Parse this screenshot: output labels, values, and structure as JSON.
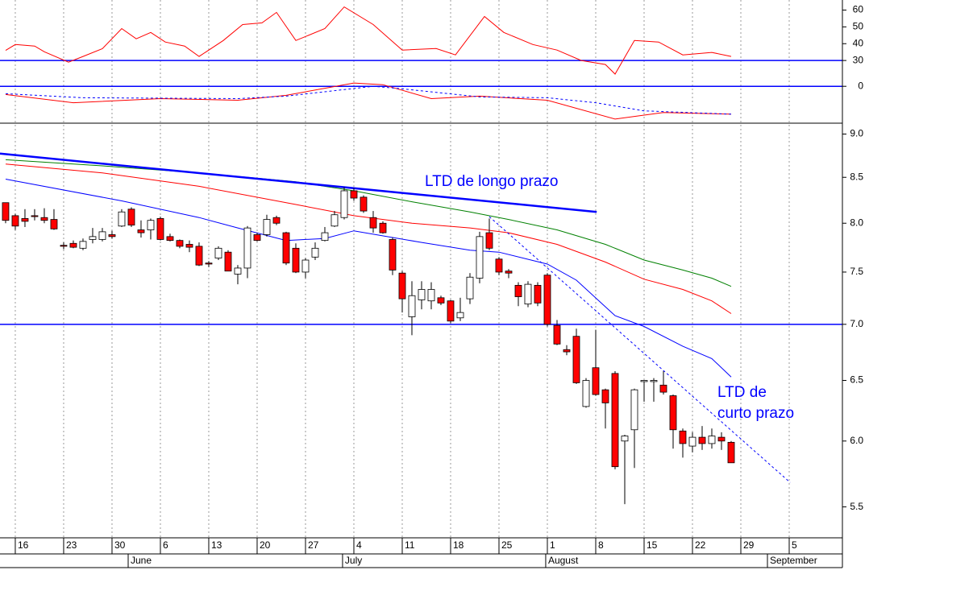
{
  "chart_data": [
    {
      "type": "line",
      "x": [
        0,
        1,
        3,
        4,
        6.5,
        8,
        10,
        12,
        13.5,
        15,
        16.5,
        18.5,
        20,
        22.5,
        24.5,
        26.5,
        28,
        30,
        33,
        35,
        38,
        41,
        44.5,
        46.5,
        49.5,
        51.5,
        54.5,
        57,
        59.5,
        62,
        63,
        65,
        67.5,
        70,
        73,
        75
      ],
      "series": [
        {
          "color": "#ff0000",
          "values": [
            36,
            39.5,
            38.6,
            35.2,
            29,
            32.4,
            37,
            49,
            42.9,
            46.7,
            41,
            38.6,
            32.4,
            41.9,
            51.4,
            52.4,
            58.6,
            41.9,
            49,
            61.9,
            51.4,
            36.2,
            37.1,
            33.3,
            56.2,
            46.7,
            39.5,
            36.2,
            30,
            27.6,
            21.9,
            41.9,
            41,
            33.3,
            34.8,
            32.4
          ]
        }
      ],
      "ylim": [
        20,
        66
      ],
      "yticks": [
        30,
        40,
        50,
        60
      ],
      "hlines": [
        30
      ],
      "hline_color": "#0000ff"
    },
    {
      "type": "line",
      "series": [
        {
          "color": "#ff0000",
          "x": [
            0,
            7,
            16,
            24,
            29,
            36,
            39,
            44,
            49,
            56,
            63,
            68,
            75
          ],
          "values": [
            -0.1,
            -0.2,
            -0.15,
            -0.17,
            -0.11,
            0.04,
            0.02,
            -0.15,
            -0.12,
            -0.17,
            -0.4,
            -0.32,
            -0.34
          ]
        },
        {
          "color": "#0000ff",
          "dash": true,
          "x": [
            0,
            8,
            24,
            29,
            38,
            41,
            49,
            56,
            61,
            66,
            75
          ],
          "values": [
            -0.09,
            -0.14,
            -0.15,
            -0.12,
            0,
            -0.03,
            -0.13,
            -0.14,
            -0.2,
            -0.3,
            -0.34
          ]
        }
      ],
      "ylim": [
        -0.45,
        0.11
      ],
      "yticks": [
        0
      ],
      "hlines": [
        0
      ],
      "hline_color": "#0000ff"
    },
    {
      "type": "candlestick",
      "x": [
        0,
        1,
        2,
        3,
        4,
        5,
        6,
        7,
        8,
        9,
        10,
        11,
        12,
        13,
        14,
        15,
        16,
        17,
        18,
        19,
        20,
        21,
        22,
        23,
        24,
        25,
        26,
        27,
        28,
        29,
        30,
        31,
        32,
        33,
        34,
        35,
        36,
        37,
        38,
        39,
        40,
        41,
        42,
        43,
        44,
        45,
        46,
        47,
        48,
        49,
        50,
        51,
        52,
        53,
        54,
        55,
        56,
        57,
        58,
        59,
        60,
        61,
        62,
        63,
        64,
        65,
        66,
        67,
        68,
        69,
        70,
        71,
        72,
        73,
        74,
        75
      ],
      "open": [
        8.22,
        8.08,
        8.05,
        8.08,
        8.06,
        8.04,
        7.77,
        7.79,
        7.74,
        7.83,
        7.83,
        7.88,
        7.97,
        8.15,
        7.93,
        7.93,
        8.05,
        7.86,
        7.82,
        7.78,
        7.76,
        7.59,
        7.64,
        7.7,
        7.48,
        7.54,
        7.88,
        7.88,
        8.06,
        7.9,
        7.74,
        7.5,
        7.65,
        7.82,
        7.97,
        8.06,
        8.35,
        8.28,
        8.06,
        8.0,
        7.83,
        7.49,
        7.07,
        7.23,
        7.22,
        7.25,
        7.22,
        7.06,
        7.24,
        7.44,
        7.9,
        7.63,
        7.51,
        7.37,
        7.19,
        7.37,
        7.47,
        6.99,
        6.77,
        6.89,
        6.28,
        6.61,
        6.42,
        6.56,
        6.0,
        6.09,
        6.49,
        6.49,
        6.46,
        6.37,
        6.08,
        5.96,
        6.03,
        5.98,
        6.03,
        5.99
      ],
      "high": [
        8.22,
        8.1,
        8.15,
        8.15,
        8.16,
        8.15,
        7.8,
        7.82,
        7.84,
        7.95,
        7.95,
        7.92,
        8.15,
        8.17,
        8.03,
        8.05,
        8.07,
        7.89,
        7.83,
        7.82,
        7.8,
        7.61,
        7.76,
        7.72,
        7.57,
        7.97,
        7.9,
        8.09,
        8.08,
        7.91,
        7.79,
        7.64,
        7.8,
        7.96,
        8.13,
        8.39,
        8.38,
        8.3,
        8.13,
        8.02,
        7.85,
        7.51,
        7.41,
        7.41,
        7.4,
        7.27,
        7.23,
        7.25,
        7.49,
        7.91,
        8.05,
        7.65,
        7.53,
        7.4,
        7.41,
        7.4,
        7.49,
        7.04,
        6.81,
        6.96,
        6.52,
        6.95,
        6.43,
        6.58,
        6.05,
        6.43,
        6.5,
        6.52,
        6.58,
        6.38,
        6.1,
        6.07,
        6.12,
        6.1,
        6.07,
        6.0
      ],
      "low": [
        8.0,
        7.93,
        7.96,
        8.03,
        8.0,
        7.93,
        7.73,
        7.74,
        7.72,
        7.79,
        7.81,
        7.84,
        7.96,
        7.96,
        7.85,
        7.83,
        7.82,
        7.81,
        7.74,
        7.7,
        7.56,
        7.55,
        7.62,
        7.51,
        7.38,
        7.44,
        7.81,
        7.86,
        7.98,
        7.57,
        7.49,
        7.44,
        7.62,
        7.81,
        7.96,
        8.04,
        8.24,
        8.11,
        7.9,
        7.89,
        7.47,
        7.11,
        6.9,
        7.14,
        7.14,
        7.18,
        7.01,
        7.03,
        7.19,
        7.39,
        7.72,
        7.47,
        7.44,
        7.17,
        7.16,
        7.17,
        6.98,
        6.81,
        6.72,
        6.47,
        6.27,
        6.37,
        6.1,
        5.78,
        5.52,
        5.79,
        6.32,
        6.32,
        6.38,
        5.94,
        5.87,
        5.91,
        5.93,
        5.94,
        5.93,
        5.83
      ],
      "close": [
        8.03,
        7.97,
        8.02,
        8.07,
        8.03,
        7.94,
        7.76,
        7.75,
        7.81,
        7.86,
        7.91,
        7.86,
        8.12,
        7.98,
        7.9,
        8.03,
        7.83,
        7.82,
        7.76,
        7.75,
        7.57,
        7.58,
        7.74,
        7.51,
        7.54,
        7.95,
        7.82,
        8.04,
        8.0,
        7.59,
        7.5,
        7.62,
        7.74,
        7.9,
        8.09,
        8.35,
        8.27,
        8.13,
        7.95,
        7.9,
        7.52,
        7.24,
        7.27,
        7.33,
        7.33,
        7.2,
        7.03,
        7.11,
        7.45,
        7.86,
        7.74,
        7.5,
        7.49,
        7.26,
        7.38,
        7.2,
        7.0,
        6.82,
        6.75,
        6.48,
        6.5,
        6.38,
        6.31,
        5.8,
        6.04,
        6.42,
        6.5,
        6.5,
        6.4,
        6.09,
        5.98,
        6.03,
        5.98,
        6.04,
        6.0,
        5.83
      ],
      "up_color": "#ffffff",
      "down_color": "#ff0000",
      "series": [
        {
          "color": "#0000ff",
          "x": [
            0,
            12,
            20,
            24,
            29,
            33,
            36,
            40,
            43,
            48,
            51,
            56,
            59,
            63,
            66,
            70,
            73,
            75
          ],
          "values": [
            8.48,
            8.24,
            8.06,
            7.95,
            7.82,
            7.84,
            7.92,
            7.85,
            7.8,
            7.72,
            7.7,
            7.58,
            7.42,
            7.08,
            6.98,
            6.8,
            6.69,
            6.53
          ]
        },
        {
          "color": "#ff0000",
          "x": [
            0,
            10,
            20,
            30,
            36,
            42,
            48,
            52,
            57,
            62,
            66,
            70,
            73,
            75
          ],
          "values": [
            8.65,
            8.55,
            8.4,
            8.2,
            8.08,
            8.0,
            7.95,
            7.9,
            7.78,
            7.6,
            7.43,
            7.33,
            7.22,
            7.1
          ]
        },
        {
          "color": "#008000",
          "x": [
            0,
            10,
            20,
            30,
            36,
            42,
            48,
            52,
            57,
            62,
            66,
            70,
            73,
            75
          ],
          "values": [
            8.7,
            8.63,
            8.55,
            8.45,
            8.35,
            8.23,
            8.12,
            8.04,
            7.93,
            7.78,
            7.62,
            7.52,
            7.44,
            7.36
          ]
        }
      ],
      "trendlines": [
        {
          "color": "#0000ff",
          "width": 2.5,
          "x": [
            -0.58,
            61.1
          ],
          "values": [
            8.77,
            8.12
          ]
        },
        {
          "color": "#0000ff",
          "width": 1,
          "dash": true,
          "x": [
            50,
            81.1
          ],
          "values": [
            8.07,
            5.68
          ]
        }
      ],
      "hlines": [
        7
      ],
      "hline_color": "#0000ff",
      "annotations": [
        "LTD de longo prazo",
        "LTD de",
        "curto prazo"
      ],
      "ylog": true,
      "ylim": [
        5.28,
        9.13
      ],
      "yticks": [
        5.5,
        {
          "value": 6,
          "label": "6.0"
        },
        6.5,
        {
          "value": 7,
          "label": "7.0"
        },
        7.5,
        {
          "value": 8,
          "label": "8.0"
        },
        8.5,
        {
          "value": 9,
          "label": "9.0"
        }
      ],
      "xlim": [
        -0.58,
        86.5
      ],
      "xticks": [
        {
          "value": 1,
          "label": "16"
        },
        {
          "value": 6,
          "label": "23"
        },
        {
          "value": 11,
          "label": "30"
        },
        {
          "value": 16,
          "label": "6"
        },
        {
          "value": 21,
          "label": "13"
        },
        {
          "value": 26,
          "label": "20"
        },
        {
          "value": 31,
          "label": "27"
        },
        {
          "value": 36,
          "label": "4"
        },
        {
          "value": 41,
          "label": "11"
        },
        {
          "value": 46,
          "label": "18"
        },
        {
          "value": 51,
          "label": "25"
        },
        {
          "value": 56,
          "label": "1"
        },
        {
          "value": 61,
          "label": "8"
        },
        {
          "value": 66,
          "label": "15"
        },
        {
          "value": 71,
          "label": "22"
        },
        {
          "value": 76,
          "label": "29"
        },
        {
          "value": 81,
          "label": "5"
        }
      ],
      "months": [
        {
          "value": 12.67,
          "label": "June"
        },
        {
          "value": 34.83,
          "label": "July"
        },
        {
          "value": 55.83,
          "label": "August"
        },
        {
          "value": 78.75,
          "label": "September"
        }
      ],
      "grid": true
    }
  ]
}
